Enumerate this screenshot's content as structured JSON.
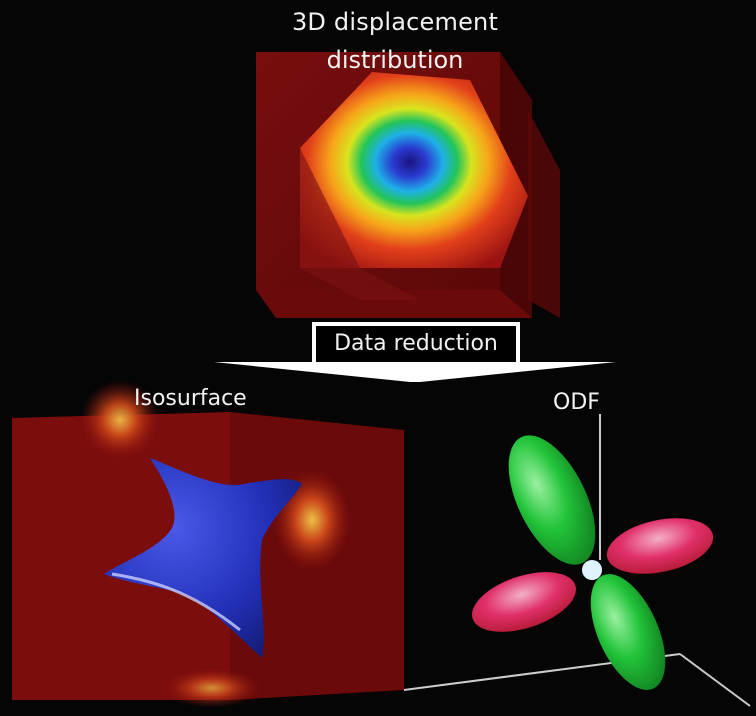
{
  "title_line1": "3D displacement",
  "title_line2": "distribution",
  "reduction_label": "Data reduction",
  "isosurface_label": "Isosurface",
  "odf_label": "ODF",
  "colors": {
    "background": "#050505",
    "volume_red": "#8b0f0f",
    "isosurface_blue": "#2230b8",
    "odf_green": "#22c43a",
    "odf_pink": "#e0306a"
  }
}
